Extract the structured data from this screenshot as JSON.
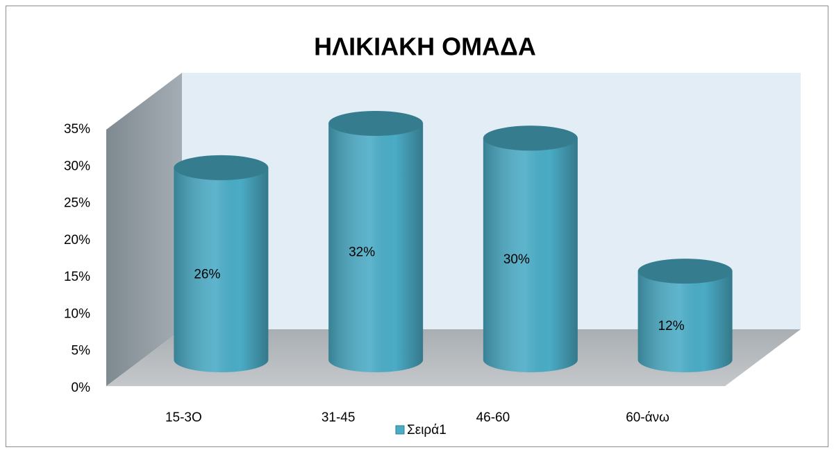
{
  "chart_data": {
    "type": "bar3d",
    "title": "ΗΛΙΚΙΑΚΗ ΟΜΑΔΑ",
    "categories": [
      "15-3O",
      "31-45",
      "46-60",
      "60-άνω"
    ],
    "series": [
      {
        "name": "Σειρά1",
        "color": "#4bacc6",
        "values": [
          26,
          32,
          30,
          12
        ],
        "value_labels": [
          "26%",
          "32%",
          "30%",
          "12%"
        ]
      }
    ],
    "ylim": [
      0,
      35
    ],
    "yticks": [
      {
        "value": 0,
        "label": "0%"
      },
      {
        "value": 5,
        "label": "5%"
      },
      {
        "value": 10,
        "label": "10%"
      },
      {
        "value": 15,
        "label": "15%"
      },
      {
        "value": 20,
        "label": "20%"
      },
      {
        "value": 25,
        "label": "25%"
      },
      {
        "value": 30,
        "label": "30%"
      },
      {
        "value": 35,
        "label": "35%"
      }
    ],
    "legend": "bottom"
  }
}
